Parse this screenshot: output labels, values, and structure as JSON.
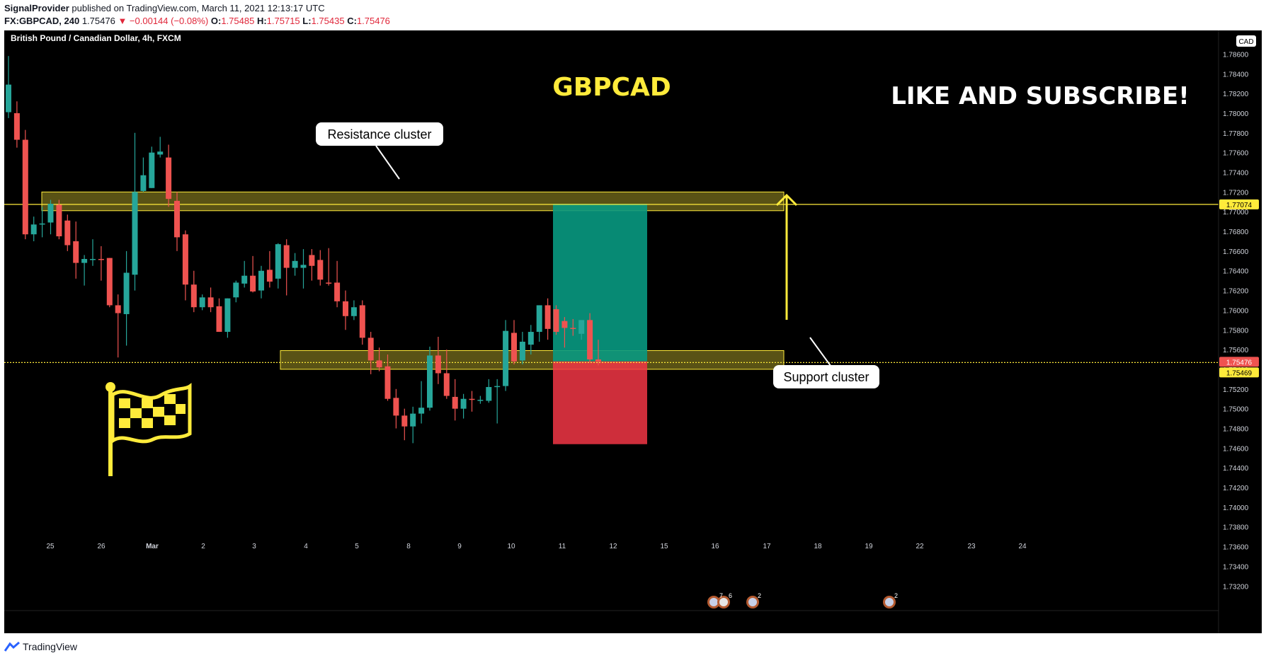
{
  "header": {
    "author": "SignalProvider",
    "published_text": "published on TradingView.com, March 11, 2021 12:13:17 UTC",
    "symbol_line": "FX:GBPCAD, 240",
    "last": "1.75476",
    "change": "▼ −0.00144 (−0.08%)",
    "o_label": "O:",
    "o": "1.75485",
    "h_label": "H:",
    "h": "1.75715",
    "l_label": "L:",
    "l": "1.75435",
    "c_label": "C:",
    "c": "1.75476"
  },
  "chart_title": "British Pound / Canadian Dollar, 4h, FXCM",
  "annotations": {
    "pair_label": "GBPCAD",
    "cta": "LIKE AND SUBSCRIBE!",
    "resistance": "Resistance cluster",
    "support": "Support cluster"
  },
  "footer": {
    "brand": "TradingView"
  },
  "colors": {
    "up": "#26a69a",
    "down": "#ef5350",
    "zone": "#ffeb3b",
    "target": "#089981",
    "stop": "#f23645",
    "background": "#000000"
  },
  "chart_data": {
    "type": "candlestick",
    "symbol": "FX:GBPCAD",
    "timeframe": "4h",
    "currency": "CAD",
    "y_ticks": [
      "1.78600",
      "1.78400",
      "1.78200",
      "1.78000",
      "1.77800",
      "1.77600",
      "1.77400",
      "1.77200",
      "1.77000",
      "1.76800",
      "1.76600",
      "1.76400",
      "1.76200",
      "1.76000",
      "1.75800",
      "1.75600",
      "1.75400",
      "1.75200",
      "1.75000",
      "1.74800",
      "1.74600",
      "1.74400",
      "1.74200",
      "1.74000",
      "1.73800",
      "1.73600",
      "1.73400",
      "1.73200"
    ],
    "ylim": [
      1.7313,
      1.7884
    ],
    "x_ticks": [
      "25",
      "26",
      "Mar",
      "2",
      "3",
      "4",
      "5",
      "8",
      "9",
      "10",
      "11",
      "12",
      "15",
      "16",
      "17",
      "18",
      "19",
      "22",
      "23",
      "24"
    ],
    "price_badges": [
      {
        "label": "1.77074",
        "value": 1.77074,
        "color": "#ffeb3b"
      },
      {
        "label": "1.75476",
        "value": 1.75476,
        "color": "#ef5350"
      },
      {
        "label": "1.75469",
        "value": 1.75469,
        "color": "#ffeb3b"
      }
    ],
    "horizontal_lines": [
      1.77074,
      1.75469
    ],
    "zones": [
      {
        "name": "Resistance cluster",
        "low": 1.7701,
        "high": 1.772
      },
      {
        "name": "Support cluster",
        "low": 1.754,
        "high": 1.7559
      }
    ],
    "position": {
      "side": "long",
      "entry": 1.7548,
      "target": 1.7708,
      "stop": 1.7464
    },
    "candles": [
      {
        "o": 1.7801,
        "h": 1.7858,
        "l": 1.7795,
        "c": 1.7829
      },
      {
        "o": 1.78,
        "h": 1.7812,
        "l": 1.7765,
        "c": 1.7773
      },
      {
        "o": 1.7773,
        "h": 1.7783,
        "l": 1.7672,
        "c": 1.7677
      },
      {
        "o": 1.7677,
        "h": 1.7695,
        "l": 1.767,
        "c": 1.7687
      },
      {
        "o": 1.7687,
        "h": 1.7705,
        "l": 1.7674,
        "c": 1.7688
      },
      {
        "o": 1.7689,
        "h": 1.7712,
        "l": 1.7677,
        "c": 1.7708
      },
      {
        "o": 1.7707,
        "h": 1.7712,
        "l": 1.7672,
        "c": 1.7675
      },
      {
        "o": 1.7691,
        "h": 1.7697,
        "l": 1.766,
        "c": 1.7666
      },
      {
        "o": 1.767,
        "h": 1.769,
        "l": 1.7632,
        "c": 1.7648
      },
      {
        "o": 1.7648,
        "h": 1.7656,
        "l": 1.7625,
        "c": 1.7652
      },
      {
        "o": 1.7652,
        "h": 1.7672,
        "l": 1.7645,
        "c": 1.7652
      },
      {
        "o": 1.7652,
        "h": 1.7665,
        "l": 1.763,
        "c": 1.7651
      },
      {
        "o": 1.7653,
        "h": 1.7653,
        "l": 1.7603,
        "c": 1.7605
      },
      {
        "o": 1.7605,
        "h": 1.7616,
        "l": 1.7552,
        "c": 1.7597
      },
      {
        "o": 1.7596,
        "h": 1.766,
        "l": 1.7564,
        "c": 1.7638
      },
      {
        "o": 1.7636,
        "h": 1.778,
        "l": 1.762,
        "c": 1.772
      },
      {
        "o": 1.7721,
        "h": 1.7755,
        "l": 1.772,
        "c": 1.7737
      },
      {
        "o": 1.7724,
        "h": 1.7766,
        "l": 1.7724,
        "c": 1.776
      },
      {
        "o": 1.7758,
        "h": 1.7776,
        "l": 1.7755,
        "c": 1.7761
      },
      {
        "o": 1.7755,
        "h": 1.7768,
        "l": 1.7705,
        "c": 1.7713
      },
      {
        "o": 1.7711,
        "h": 1.772,
        "l": 1.766,
        "c": 1.7674
      },
      {
        "o": 1.7677,
        "h": 1.7681,
        "l": 1.761,
        "c": 1.7626
      },
      {
        "o": 1.7626,
        "h": 1.764,
        "l": 1.7598,
        "c": 1.7603
      },
      {
        "o": 1.7603,
        "h": 1.7616,
        "l": 1.76,
        "c": 1.7613
      },
      {
        "o": 1.7613,
        "h": 1.7623,
        "l": 1.7598,
        "c": 1.7603
      },
      {
        "o": 1.7604,
        "h": 1.7612,
        "l": 1.7578,
        "c": 1.7578
      },
      {
        "o": 1.7578,
        "h": 1.7612,
        "l": 1.7572,
        "c": 1.7612
      },
      {
        "o": 1.7613,
        "h": 1.763,
        "l": 1.7608,
        "c": 1.7628
      },
      {
        "o": 1.7627,
        "h": 1.765,
        "l": 1.7623,
        "c": 1.7635
      },
      {
        "o": 1.7635,
        "h": 1.7655,
        "l": 1.7618,
        "c": 1.7619
      },
      {
        "o": 1.762,
        "h": 1.7645,
        "l": 1.7612,
        "c": 1.764
      },
      {
        "o": 1.7641,
        "h": 1.766,
        "l": 1.7623,
        "c": 1.7629
      },
      {
        "o": 1.7632,
        "h": 1.7668,
        "l": 1.7622,
        "c": 1.7667
      },
      {
        "o": 1.7666,
        "h": 1.7672,
        "l": 1.7615,
        "c": 1.7643
      },
      {
        "o": 1.7643,
        "h": 1.7658,
        "l": 1.7635,
        "c": 1.765
      },
      {
        "o": 1.7643,
        "h": 1.7662,
        "l": 1.7622,
        "c": 1.7646
      },
      {
        "o": 1.7656,
        "h": 1.7662,
        "l": 1.763,
        "c": 1.7645
      },
      {
        "o": 1.7651,
        "h": 1.7661,
        "l": 1.7625,
        "c": 1.7631
      },
      {
        "o": 1.7628,
        "h": 1.7663,
        "l": 1.7625,
        "c": 1.7627
      },
      {
        "o": 1.7628,
        "h": 1.765,
        "l": 1.7603,
        "c": 1.7609
      },
      {
        "o": 1.7609,
        "h": 1.762,
        "l": 1.758,
        "c": 1.7594
      },
      {
        "o": 1.7594,
        "h": 1.761,
        "l": 1.759,
        "c": 1.7603
      },
      {
        "o": 1.7605,
        "h": 1.761,
        "l": 1.7565,
        "c": 1.7572
      },
      {
        "o": 1.7572,
        "h": 1.7578,
        "l": 1.7535,
        "c": 1.7549
      },
      {
        "o": 1.7549,
        "h": 1.7562,
        "l": 1.7538,
        "c": 1.7542
      },
      {
        "o": 1.7543,
        "h": 1.7555,
        "l": 1.7508,
        "c": 1.751
      },
      {
        "o": 1.7511,
        "h": 1.752,
        "l": 1.748,
        "c": 1.7493
      },
      {
        "o": 1.7493,
        "h": 1.75,
        "l": 1.7468,
        "c": 1.7482
      },
      {
        "o": 1.7482,
        "h": 1.7502,
        "l": 1.7465,
        "c": 1.7495
      },
      {
        "o": 1.7495,
        "h": 1.7528,
        "l": 1.7485,
        "c": 1.7501
      },
      {
        "o": 1.7501,
        "h": 1.7563,
        "l": 1.7498,
        "c": 1.7554
      },
      {
        "o": 1.7554,
        "h": 1.7573,
        "l": 1.7525,
        "c": 1.7536
      },
      {
        "o": 1.7536,
        "h": 1.756,
        "l": 1.751,
        "c": 1.7513
      },
      {
        "o": 1.7512,
        "h": 1.753,
        "l": 1.7488,
        "c": 1.75
      },
      {
        "o": 1.75,
        "h": 1.7515,
        "l": 1.749,
        "c": 1.751
      },
      {
        "o": 1.751,
        "h": 1.7518,
        "l": 1.7497,
        "c": 1.7509
      },
      {
        "o": 1.7509,
        "h": 1.7513,
        "l": 1.7505,
        "c": 1.7509
      },
      {
        "o": 1.7508,
        "h": 1.753,
        "l": 1.7506,
        "c": 1.7522
      },
      {
        "o": 1.7522,
        "h": 1.753,
        "l": 1.7485,
        "c": 1.7523
      },
      {
        "o": 1.7523,
        "h": 1.759,
        "l": 1.7518,
        "c": 1.7579
      },
      {
        "o": 1.7577,
        "h": 1.759,
        "l": 1.7545,
        "c": 1.7548
      },
      {
        "o": 1.7549,
        "h": 1.7578,
        "l": 1.7545,
        "c": 1.7568
      },
      {
        "o": 1.7565,
        "h": 1.7585,
        "l": 1.7555,
        "c": 1.7578
      },
      {
        "o": 1.7578,
        "h": 1.7605,
        "l": 1.7568,
        "c": 1.7605
      },
      {
        "o": 1.7605,
        "h": 1.7612,
        "l": 1.757,
        "c": 1.7581
      },
      {
        "o": 1.7601,
        "h": 1.7605,
        "l": 1.7575,
        "c": 1.7578
      },
      {
        "o": 1.7589,
        "h": 1.7593,
        "l": 1.7562,
        "c": 1.7582
      },
      {
        "o": 1.7582,
        "h": 1.7591,
        "l": 1.7574,
        "c": 1.7581
      },
      {
        "o": 1.7576,
        "h": 1.7589,
        "l": 1.757,
        "c": 1.759
      },
      {
        "o": 1.759,
        "h": 1.7597,
        "l": 1.7547,
        "c": 1.755
      },
      {
        "o": 1.755,
        "h": 1.757,
        "l": 1.7544,
        "c": 1.7548
      }
    ]
  }
}
